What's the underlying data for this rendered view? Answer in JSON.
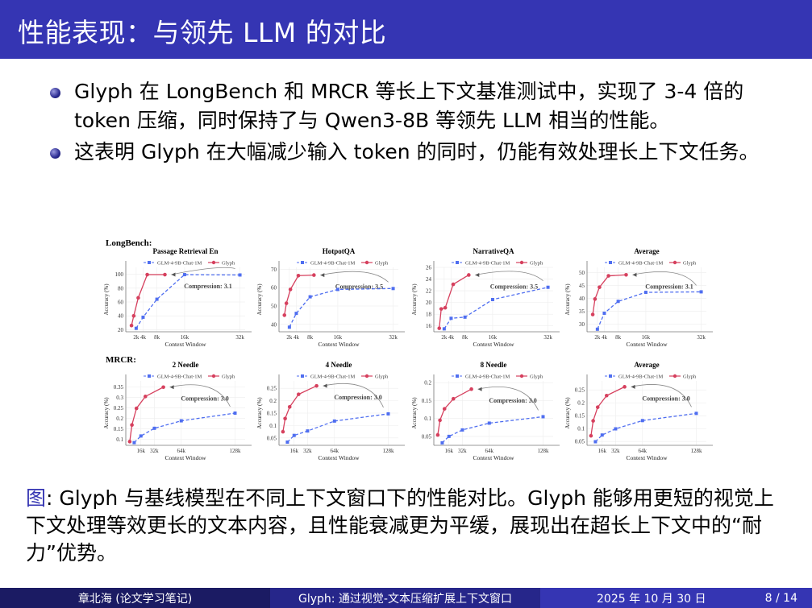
{
  "header": {
    "title": "性能表现：与领先 LLM 的对比"
  },
  "bullets": [
    "Glyph 在 LongBench 和 MRCR 等长上下文基准测试中，实现了 3-4 倍的 token 压缩，同时保持了与 Qwen3-8B 等领先 LLM 相当的性能。",
    "这表明 Glyph 在大幅减少输入 token 的同时，仍能有效处理长上下文任务。"
  ],
  "figure": {
    "sections": [
      "LongBench:",
      "MRCR:"
    ],
    "colors": {
      "glm": "#4f6ef0",
      "glyph": "#d6405e",
      "arrow": "#888888"
    }
  },
  "chart_data": [
    {
      "type": "line",
      "title": "Passage Retrieval En",
      "xlabel": "Context Window",
      "ylabel": "Accuracy (%)",
      "xticks": [
        2,
        4,
        8,
        16,
        32
      ],
      "xtick_labels": [
        "2k",
        "4k",
        "8k",
        "16k",
        "32k"
      ],
      "xlim": [
        -1,
        33.5
      ],
      "yticks": [
        20,
        40,
        60,
        80,
        100
      ],
      "ylim": [
        17,
        110
      ],
      "annotation": "Compression: 3.1",
      "legend": "top",
      "series": [
        {
          "name": "GLM-4-9B-Chat-1M",
          "x": [
            2,
            4,
            8,
            16,
            32
          ],
          "y": [
            22,
            38,
            64,
            99.5,
            99
          ]
        },
        {
          "name": "Glyph",
          "x": [
            0.65,
            1.3,
            2.6,
            5.2,
            10.3
          ],
          "y": [
            26,
            40,
            66,
            99.5,
            99.5
          ]
        }
      ]
    },
    {
      "type": "line",
      "title": "HotpotQA",
      "xlabel": "Context Window",
      "ylabel": "Accuracy (%)",
      "xticks": [
        2,
        4,
        8,
        16,
        32
      ],
      "xtick_labels": [
        "2k",
        "4k",
        "8k",
        "16k",
        "32k"
      ],
      "xlim": [
        -1,
        33.5
      ],
      "yticks": [
        40,
        50,
        60,
        70
      ],
      "ylim": [
        36,
        71
      ],
      "annotation": "Compression: 3.5",
      "legend": "top",
      "series": [
        {
          "name": "GLM-4-9B-Chat-1M",
          "x": [
            2,
            4,
            8,
            16,
            32
          ],
          "y": [
            38.5,
            46,
            55,
            59,
            59.5
          ]
        },
        {
          "name": "Glyph",
          "x": [
            0.57,
            1.14,
            2.3,
            4.6,
            9.1
          ],
          "y": [
            45,
            51.5,
            59,
            66.5,
            66.8
          ]
        }
      ]
    },
    {
      "type": "line",
      "title": "NarrativeQA",
      "xlabel": "Context Window",
      "ylabel": "Accuracy (%)",
      "xticks": [
        2,
        4,
        8,
        16,
        32
      ],
      "xtick_labels": [
        "2k",
        "4k",
        "8k",
        "16k",
        "32k"
      ],
      "xlim": [
        -1,
        33.5
      ],
      "yticks": [
        16,
        18,
        20,
        22,
        24,
        26
      ],
      "ylim": [
        15,
        26
      ],
      "annotation": "Compression: 3.5",
      "legend": "top",
      "series": [
        {
          "name": "GLM-4-9B-Chat-1M",
          "x": [
            2,
            4,
            8,
            16,
            32
          ],
          "y": [
            15.5,
            17.3,
            17.5,
            20.5,
            22.6
          ]
        },
        {
          "name": "Glyph",
          "x": [
            0.57,
            1.14,
            2.3,
            4.6,
            9.1
          ],
          "y": [
            15.6,
            18.9,
            19.1,
            23.1,
            24.7
          ]
        }
      ]
    },
    {
      "type": "line",
      "title": "Average",
      "xlabel": "Context Window",
      "ylabel": "Accuracy (%)",
      "xticks": [
        2,
        4,
        8,
        16,
        32
      ],
      "xtick_labels": [
        "2k",
        "4k",
        "8k",
        "16k",
        "32k"
      ],
      "xlim": [
        -1,
        33.5
      ],
      "yticks": [
        30,
        35,
        40,
        45,
        50
      ],
      "ylim": [
        27,
        52
      ],
      "annotation": "Compression: 3.1",
      "legend": "top",
      "series": [
        {
          "name": "GLM-4-9B-Chat-1M",
          "x": [
            2,
            4,
            8,
            16,
            32
          ],
          "y": [
            28,
            34.2,
            38.8,
            42.3,
            42.5
          ]
        },
        {
          "name": "Glyph",
          "x": [
            0.65,
            1.3,
            2.6,
            5.2,
            10.3
          ],
          "y": [
            33.7,
            39.7,
            44.3,
            48.7,
            49.1
          ]
        }
      ]
    },
    {
      "type": "line",
      "title": "2 Needle",
      "xlabel": "Context Window",
      "ylabel": "Accuracy (%)",
      "xticks": [
        16,
        32,
        64,
        128
      ],
      "xtick_labels": [
        "16k",
        "32k",
        "64k",
        "128k"
      ],
      "xlim": [
        -2,
        140
      ],
      "yticks": [
        0.1,
        0.15,
        0.2,
        0.25,
        0.3,
        0.35
      ],
      "ylim": [
        0.07,
        0.38
      ],
      "annotation": "Compression: 3.0",
      "legend": "top",
      "series": [
        {
          "name": "GLM-4-9B-Chat-1M",
          "x": [
            8,
            16,
            32,
            64,
            128
          ],
          "y": [
            0.083,
            0.115,
            0.152,
            0.188,
            0.225
          ]
        },
        {
          "name": "Glyph",
          "x": [
            2.7,
            5.3,
            10.7,
            21.3,
            42.7
          ],
          "y": [
            0.088,
            0.168,
            0.248,
            0.305,
            0.35
          ]
        }
      ]
    },
    {
      "type": "line",
      "title": "4 Needle",
      "xlabel": "Context Window",
      "ylabel": "Accuracy (%)",
      "xticks": [
        16,
        32,
        64,
        128
      ],
      "xtick_labels": [
        "16k",
        "32k",
        "64k",
        "128k"
      ],
      "xlim": [
        -2,
        140
      ],
      "yticks": [
        0.05,
        0.1,
        0.15,
        0.2,
        0.25
      ],
      "ylim": [
        0.02,
        0.28
      ],
      "annotation": "Compression: 3.0",
      "legend": "top",
      "series": [
        {
          "name": "GLM-4-9B-Chat-1M",
          "x": [
            8,
            16,
            32,
            64,
            128
          ],
          "y": [
            0.033,
            0.06,
            0.078,
            0.118,
            0.147
          ]
        },
        {
          "name": "Glyph",
          "x": [
            2.7,
            5.3,
            10.7,
            21.3,
            42.7
          ],
          "y": [
            0.075,
            0.128,
            0.175,
            0.226,
            0.26
          ]
        }
      ]
    },
    {
      "type": "line",
      "title": "8 Needle",
      "xlabel": "Context Window",
      "ylabel": "Accuracy (%)",
      "xticks": [
        16,
        32,
        64,
        128
      ],
      "xtick_labels": [
        "16k",
        "32k",
        "64k",
        "128k"
      ],
      "xlim": [
        -2,
        140
      ],
      "yticks": [
        0.05,
        0.1,
        0.15,
        0.2
      ],
      "ylim": [
        0.025,
        0.205
      ],
      "annotation": "Compression: 3.0",
      "legend": "top",
      "series": [
        {
          "name": "GLM-4-9B-Chat-1M",
          "x": [
            8,
            16,
            32,
            64,
            128
          ],
          "y": [
            0.032,
            0.05,
            0.068,
            0.087,
            0.105
          ]
        },
        {
          "name": "Glyph",
          "x": [
            2.7,
            5.3,
            10.7,
            21.3,
            42.7
          ],
          "y": [
            0.054,
            0.095,
            0.127,
            0.155,
            0.182
          ]
        }
      ]
    },
    {
      "type": "line",
      "title": "Average",
      "xlabel": "Context Window",
      "ylabel": "Accuracy (%)",
      "xticks": [
        16,
        32,
        64,
        128
      ],
      "xtick_labels": [
        "16k",
        "32k",
        "64k",
        "128k"
      ],
      "xlim": [
        -2,
        140
      ],
      "yticks": [
        0.05,
        0.1,
        0.15,
        0.2,
        0.25
      ],
      "ylim": [
        0.035,
        0.285
      ],
      "annotation": "Compression: 3.0",
      "legend": "top",
      "series": [
        {
          "name": "GLM-4-9B-Chat-1M",
          "x": [
            8,
            16,
            32,
            64,
            128
          ],
          "y": [
            0.049,
            0.075,
            0.099,
            0.131,
            0.159
          ]
        },
        {
          "name": "Glyph",
          "x": [
            2.7,
            5.3,
            10.7,
            21.3,
            42.7
          ],
          "y": [
            0.072,
            0.13,
            0.183,
            0.228,
            0.262
          ]
        }
      ]
    }
  ],
  "caption": {
    "label": "图",
    "text": ": Glyph 与基线模型在不同上下文窗口下的性能对比。Glyph 能够用更短的视觉上下文处理等效更长的文本内容，且性能衰减更为平缓，展现出在超长上下文中的“耐力”优势。"
  },
  "footer": {
    "author": "章北海 (论文学习笔记)",
    "title": "Glyph: 通过视觉-文本压缩扩展上下文窗口",
    "date": "2025 年 10 月 30 日",
    "page": "8 / 14"
  }
}
